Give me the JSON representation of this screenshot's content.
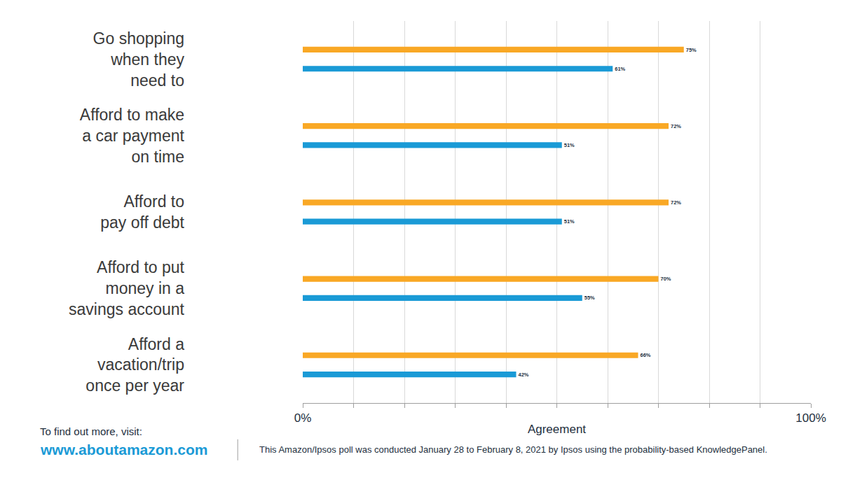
{
  "chart_data": {
    "type": "bar",
    "orientation": "horizontal",
    "categories": [
      "Go shopping\nwhen they\nneed to",
      "Afford to make\na car payment\non time",
      "Afford to\npay off debt",
      "Afford to put\nmoney in a\nsavings account",
      "Afford a\nvacation/trip\nonce per year"
    ],
    "series": [
      {
        "color": "#f9a825",
        "values": [
          75,
          72,
          72,
          70,
          66
        ],
        "value_labels": [
          "75%",
          "72%",
          "72%",
          "70%",
          "66%"
        ]
      },
      {
        "color": "#1a9ad6",
        "values": [
          61,
          51,
          51,
          55,
          42
        ],
        "value_labels": [
          "61%",
          "51%",
          "51%",
          "55%",
          "42%"
        ]
      }
    ],
    "xlabel": "Agreement",
    "xlim": [
      0,
      100
    ],
    "xticks": [
      {
        "value": 0,
        "label": "0%"
      },
      {
        "value": 100,
        "label": "100%"
      }
    ],
    "grid": true,
    "data_labels": true,
    "annotations": [
      "To find out more, visit:",
      "www.aboutamazon.com",
      "This Amazon/Ipsos poll was conducted January 28 to February 8, 2021 by Ipsos using the probability-based KnowledgePanel."
    ]
  }
}
